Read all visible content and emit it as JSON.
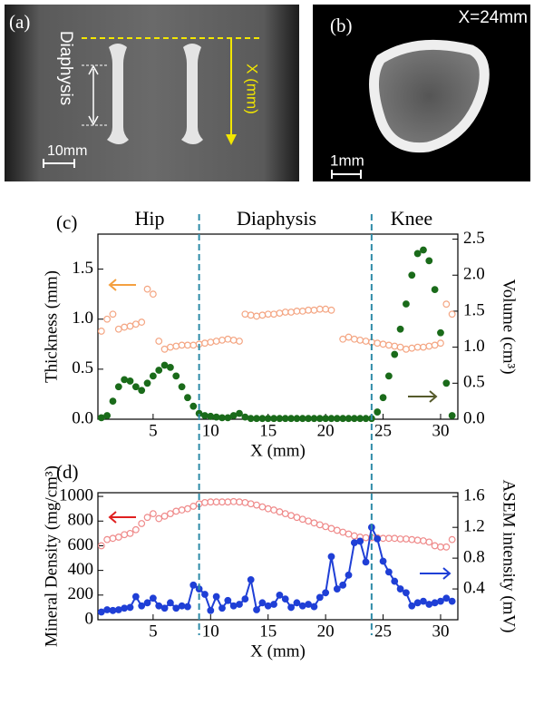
{
  "images": {
    "a": {
      "label": "(a)",
      "side_label": "Diaphysis",
      "axis_label": "X (mm)",
      "scale_label": "10mm"
    },
    "b": {
      "label": "(b)",
      "position_label": "X=24mm",
      "scale_label": "1mm"
    }
  },
  "chart_data": [
    {
      "type": "scatter",
      "panel_label": "(c)",
      "annotations": [
        "Hip",
        "Diaphysis",
        "Knee"
      ],
      "x_label": "X (mm)",
      "y_label": "Thickness (mm)",
      "y2_label": "Volume (cm³)",
      "xlim": [
        0.2,
        31.5
      ],
      "ylim": [
        0,
        1.85
      ],
      "y2lim": [
        0,
        2.57
      ],
      "xticks": [
        5,
        10,
        15,
        20,
        25,
        30
      ],
      "yticks": [
        {
          "value": 0,
          "label": "0.0"
        },
        {
          "value": 0.5,
          "label": "0.5"
        },
        {
          "value": 1,
          "label": "1.0"
        },
        {
          "value": 1.5,
          "label": "1.5"
        }
      ],
      "y2ticks": [
        {
          "value": 0,
          "label": "0.0"
        },
        {
          "value": 0.5,
          "label": "0.5"
        },
        {
          "value": 1,
          "label": "1.0"
        },
        {
          "value": 1.5,
          "label": "1.5"
        },
        {
          "value": 2,
          "label": "2.0"
        },
        {
          "value": 2.5,
          "label": "2.5"
        }
      ],
      "vlines": [
        9.0,
        24.0
      ],
      "x": [
        0.5,
        1,
        1.5,
        2,
        2.5,
        3,
        3.5,
        4,
        4.5,
        5,
        5.5,
        6,
        6.5,
        7,
        7.5,
        8,
        8.5,
        9,
        9.5,
        10,
        10.5,
        11,
        11.5,
        12,
        12.5,
        13,
        13.5,
        14,
        14.5,
        15,
        15.5,
        16,
        16.5,
        17,
        17.5,
        18,
        18.5,
        19,
        19.5,
        20,
        20.5,
        21,
        21.5,
        22,
        22.5,
        23,
        23.5,
        24,
        24.5,
        25,
        25.5,
        26,
        26.5,
        27,
        27.5,
        28,
        28.5,
        29,
        29.5,
        30,
        30.5,
        31
      ],
      "series": [
        {
          "color": "#f4a582",
          "marker": "open",
          "axis": "y",
          "values": [
            0.88,
            1.0,
            1.05,
            0.9,
            0.92,
            0.93,
            0.95,
            0.97,
            1.3,
            1.25,
            0.78,
            0.7,
            0.72,
            0.73,
            0.74,
            0.74,
            0.74,
            0.75,
            0.76,
            0.77,
            0.78,
            0.79,
            0.8,
            0.79,
            0.78,
            1.05,
            1.04,
            1.03,
            1.04,
            1.05,
            1.05,
            1.06,
            1.07,
            1.07,
            1.08,
            1.08,
            1.09,
            1.09,
            1.1,
            1.1,
            1.09,
            null,
            0.8,
            0.82,
            0.8,
            0.79,
            0.78,
            0.77,
            0.76,
            0.75,
            0.74,
            0.73,
            0.72,
            0.7,
            0.71,
            0.72,
            0.72,
            0.73,
            0.74,
            0.76,
            1.15,
            1.05
          ]
        },
        {
          "color": "#1a6b1a",
          "marker": "filled",
          "axis": "y2",
          "values": [
            0.02,
            0.05,
            0.25,
            0.45,
            0.55,
            0.53,
            0.45,
            0.4,
            0.5,
            0.6,
            0.68,
            0.75,
            0.72,
            0.6,
            0.45,
            0.3,
            0.18,
            0.08,
            0.05,
            0.04,
            0.03,
            0.02,
            0.02,
            0.05,
            0.08,
            0.03,
            0.01,
            0.01,
            0.01,
            0.01,
            0.01,
            0.01,
            0.01,
            0.01,
            0.01,
            0.01,
            0.01,
            0.01,
            0.01,
            0.01,
            0.01,
            0.01,
            0.01,
            0.01,
            0.01,
            0.01,
            0.01,
            0.01,
            0.1,
            0.3,
            0.6,
            0.9,
            1.25,
            1.6,
            2.0,
            2.3,
            2.35,
            2.2,
            1.8,
            1.2,
            0.5,
            0.05
          ]
        }
      ]
    },
    {
      "type": "scatter",
      "panel_label": "(d)",
      "x_label": "X (mm)",
      "y_label": "Mineral Density (mg/cm³)",
      "y2_label": "ASEM intensity (mV)",
      "xlim": [
        0.2,
        31.5
      ],
      "ylim": [
        0,
        1030
      ],
      "y2lim": [
        0,
        1.65
      ],
      "xticks": [
        5,
        10,
        15,
        20,
        25,
        30
      ],
      "yticks": [
        0,
        200,
        400,
        600,
        800,
        1000
      ],
      "y2ticks": [
        0.4,
        0.8,
        1.2,
        1.6
      ],
      "x": [
        0.5,
        1,
        1.5,
        2,
        2.5,
        3,
        3.5,
        4,
        4.5,
        5,
        5.5,
        6,
        6.5,
        7,
        7.5,
        8,
        8.5,
        9,
        9.5,
        10,
        10.5,
        11,
        11.5,
        12,
        12.5,
        13,
        13.5,
        14,
        14.5,
        15,
        15.5,
        16,
        16.5,
        17,
        17.5,
        18,
        18.5,
        19,
        19.5,
        20,
        20.5,
        21,
        21.5,
        22,
        22.5,
        23,
        23.5,
        24,
        24.5,
        25,
        25.5,
        26,
        26.5,
        27,
        27.5,
        28,
        28.5,
        29,
        29.5,
        30,
        30.5,
        31
      ],
      "series": [
        {
          "color": "#ef8a8a",
          "marker": "open",
          "axis": "y",
          "values": [
            600,
            650,
            660,
            670,
            690,
            700,
            730,
            780,
            830,
            860,
            820,
            840,
            860,
            880,
            890,
            900,
            920,
            940,
            950,
            955,
            955,
            955,
            955,
            958,
            955,
            950,
            940,
            930,
            915,
            900,
            890,
            875,
            860,
            845,
            830,
            815,
            800,
            785,
            770,
            755,
            740,
            725,
            710,
            695,
            680,
            670,
            665,
            665,
            665,
            660,
            660,
            660,
            655,
            655,
            650,
            645,
            640,
            630,
            600,
            590,
            590,
            650
          ]
        },
        {
          "color": "#1f3fd6",
          "marker": "filled",
          "line": true,
          "axis": "y2",
          "values": [
            0.1,
            0.13,
            0.12,
            0.13,
            0.15,
            0.16,
            0.3,
            0.18,
            0.22,
            0.28,
            0.18,
            0.15,
            0.22,
            0.15,
            0.18,
            0.17,
            0.45,
            0.4,
            0.33,
            0.12,
            0.3,
            0.15,
            0.25,
            0.18,
            0.2,
            0.27,
            0.52,
            0.13,
            0.22,
            0.18,
            0.2,
            0.32,
            0.27,
            0.16,
            0.22,
            0.18,
            0.2,
            0.17,
            0.29,
            0.35,
            0.82,
            0.4,
            0.45,
            0.58,
            1.0,
            1.02,
            0.75,
            1.2,
            1.05,
            0.76,
            0.62,
            0.5,
            0.4,
            0.35,
            0.18,
            0.22,
            0.24,
            0.2,
            0.22,
            0.24,
            0.28,
            0.24
          ]
        }
      ]
    }
  ]
}
